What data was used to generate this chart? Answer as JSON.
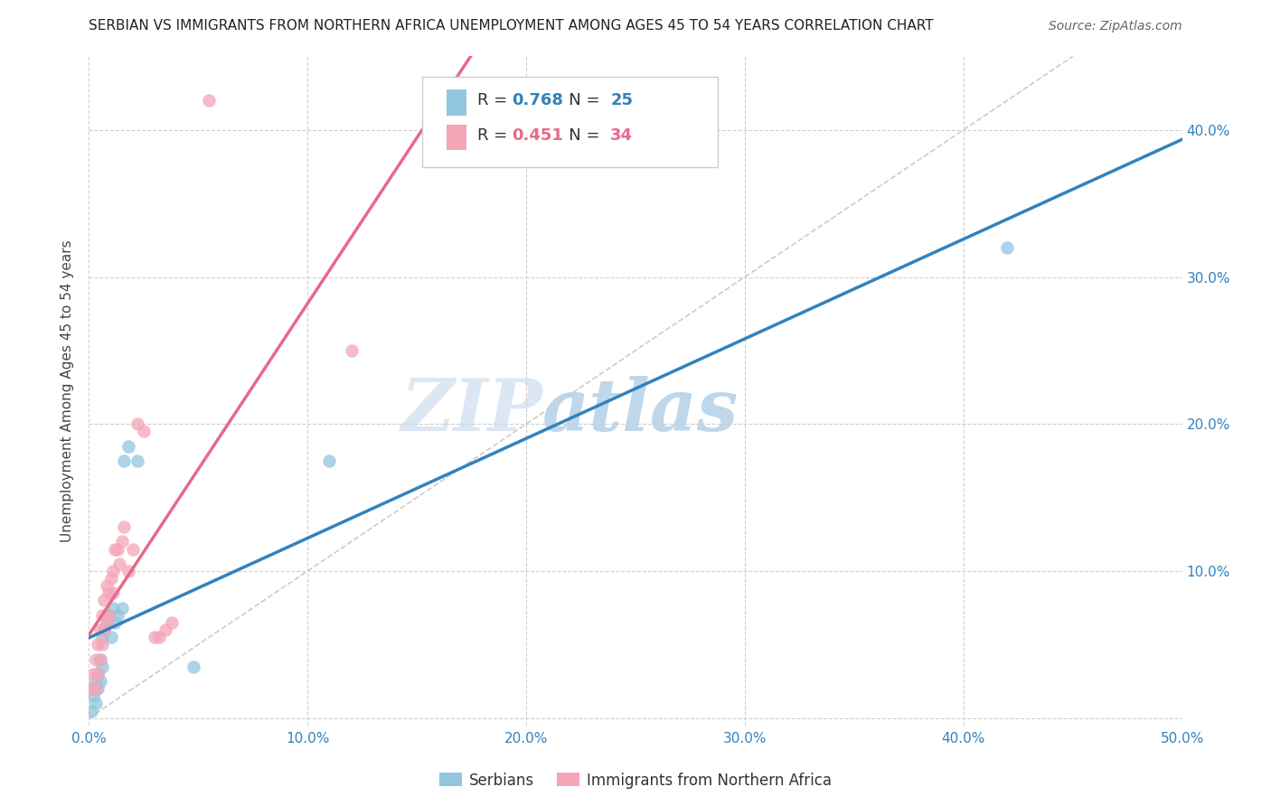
{
  "title": "SERBIAN VS IMMIGRANTS FROM NORTHERN AFRICA UNEMPLOYMENT AMONG AGES 45 TO 54 YEARS CORRELATION CHART",
  "source": "Source: ZipAtlas.com",
  "ylabel": "Unemployment Among Ages 45 to 54 years",
  "xlim": [
    0.0,
    0.5
  ],
  "ylim": [
    -0.005,
    0.45
  ],
  "xticks": [
    0.0,
    0.1,
    0.2,
    0.3,
    0.4,
    0.5
  ],
  "yticks": [
    0.0,
    0.1,
    0.2,
    0.3,
    0.4
  ],
  "background_color": "#ffffff",
  "watermark_zip": "ZIP",
  "watermark_atlas": "atlas",
  "legend_R1": "0.768",
  "legend_N1": "25",
  "legend_R2": "0.451",
  "legend_N2": "34",
  "blue_color": "#92c5de",
  "pink_color": "#f4a5b8",
  "blue_line_color": "#3182bd",
  "pink_line_color": "#e8698a",
  "diag_line_color": "#cccccc",
  "serbian_x": [
    0.001,
    0.002,
    0.002,
    0.003,
    0.003,
    0.004,
    0.004,
    0.005,
    0.005,
    0.006,
    0.006,
    0.007,
    0.008,
    0.009,
    0.01,
    0.011,
    0.012,
    0.013,
    0.015,
    0.016,
    0.018,
    0.022,
    0.048,
    0.11,
    0.42
  ],
  "serbian_y": [
    0.005,
    0.015,
    0.02,
    0.025,
    0.01,
    0.02,
    0.03,
    0.025,
    0.04,
    0.035,
    0.055,
    0.06,
    0.065,
    0.07,
    0.055,
    0.075,
    0.065,
    0.07,
    0.075,
    0.175,
    0.185,
    0.175,
    0.035,
    0.175,
    0.32
  ],
  "north_africa_x": [
    0.001,
    0.002,
    0.003,
    0.003,
    0.004,
    0.004,
    0.005,
    0.005,
    0.006,
    0.006,
    0.007,
    0.007,
    0.008,
    0.008,
    0.009,
    0.009,
    0.01,
    0.011,
    0.011,
    0.012,
    0.013,
    0.014,
    0.015,
    0.016,
    0.018,
    0.02,
    0.022,
    0.025,
    0.03,
    0.032,
    0.035,
    0.038,
    0.055,
    0.12
  ],
  "north_africa_y": [
    0.02,
    0.03,
    0.04,
    0.02,
    0.05,
    0.03,
    0.06,
    0.04,
    0.07,
    0.05,
    0.08,
    0.06,
    0.09,
    0.065,
    0.085,
    0.07,
    0.095,
    0.1,
    0.085,
    0.115,
    0.115,
    0.105,
    0.12,
    0.13,
    0.1,
    0.115,
    0.2,
    0.195,
    0.055,
    0.055,
    0.06,
    0.065,
    0.42,
    0.25
  ]
}
